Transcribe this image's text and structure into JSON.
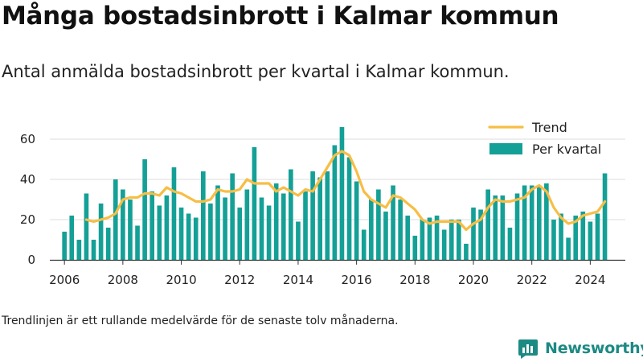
{
  "title": "Många bostadsinbrott i Kalmar kommun",
  "subtitle": "Antal anmälda bostadsinbrott per kvartal i Kalmar kommun.",
  "caption": "Trendlinjen är ett rullande medelvärde för de senaste tolv månaderna.",
  "brand": {
    "name": "Newsworthy"
  },
  "colors": {
    "bars": "#14a096",
    "trend": "#f7be45",
    "grid": "#dddddd",
    "axis": "#333333",
    "brand": "#1c8a83"
  },
  "chart_data": {
    "type": "bar",
    "title": "Många bostadsinbrott i Kalmar kommun",
    "subtitle": "Antal anmälda bostadsinbrott per kvartal i Kalmar kommun.",
    "xlabel": "",
    "ylabel": "",
    "ylim": [
      0,
      70
    ],
    "yticks": [
      0,
      20,
      40,
      60
    ],
    "xlim": [
      2005.5,
      2025.2
    ],
    "xticks": [
      2006,
      2008,
      2010,
      2012,
      2014,
      2016,
      2018,
      2020,
      2022,
      2024
    ],
    "grid": true,
    "legend_position": "top-right",
    "series": [
      {
        "name": "Per kvartal",
        "type": "bar",
        "x": [
          2006.0,
          2006.25,
          2006.5,
          2006.75,
          2007.0,
          2007.25,
          2007.5,
          2007.75,
          2008.0,
          2008.25,
          2008.5,
          2008.75,
          2009.0,
          2009.25,
          2009.5,
          2009.75,
          2010.0,
          2010.25,
          2010.5,
          2010.75,
          2011.0,
          2011.25,
          2011.5,
          2011.75,
          2012.0,
          2012.25,
          2012.5,
          2012.75,
          2013.0,
          2013.25,
          2013.5,
          2013.75,
          2014.0,
          2014.25,
          2014.5,
          2014.75,
          2015.0,
          2015.25,
          2015.5,
          2015.75,
          2016.0,
          2016.25,
          2016.5,
          2016.75,
          2017.0,
          2017.25,
          2017.5,
          2017.75,
          2018.0,
          2018.25,
          2018.5,
          2018.75,
          2019.0,
          2019.25,
          2019.5,
          2019.75,
          2020.0,
          2020.25,
          2020.5,
          2020.75,
          2021.0,
          2021.25,
          2021.5,
          2021.75,
          2022.0,
          2022.25,
          2022.5,
          2022.75,
          2023.0,
          2023.25,
          2023.5,
          2023.75,
          2024.0,
          2024.25,
          2024.5
        ],
        "values": [
          14,
          22,
          10,
          33,
          10,
          28,
          16,
          40,
          35,
          30,
          17,
          50,
          34,
          27,
          32,
          46,
          26,
          23,
          21,
          44,
          28,
          37,
          31,
          43,
          26,
          35,
          56,
          31,
          27,
          38,
          33,
          45,
          19,
          34,
          44,
          41,
          44,
          57,
          66,
          51,
          39,
          15,
          30,
          35,
          24,
          37,
          30,
          22,
          12,
          20,
          21,
          22,
          15,
          20,
          20,
          8,
          26,
          25,
          35,
          32,
          32,
          16,
          33,
          37,
          37,
          37,
          38,
          20,
          23,
          11,
          22,
          24,
          19,
          23,
          43
        ]
      },
      {
        "name": "Trend",
        "type": "line",
        "x": [
          2006.75,
          2007.0,
          2007.25,
          2007.5,
          2007.75,
          2008.0,
          2008.25,
          2008.5,
          2008.75,
          2009.0,
          2009.25,
          2009.5,
          2009.75,
          2010.0,
          2010.25,
          2010.5,
          2010.75,
          2011.0,
          2011.25,
          2011.5,
          2011.75,
          2012.0,
          2012.25,
          2012.5,
          2012.75,
          2013.0,
          2013.25,
          2013.5,
          2013.75,
          2014.0,
          2014.25,
          2014.5,
          2014.75,
          2015.0,
          2015.25,
          2015.5,
          2015.75,
          2016.0,
          2016.25,
          2016.5,
          2016.75,
          2017.0,
          2017.25,
          2017.5,
          2017.75,
          2018.0,
          2018.25,
          2018.5,
          2018.75,
          2019.0,
          2019.25,
          2019.5,
          2019.75,
          2020.0,
          2020.25,
          2020.5,
          2020.75,
          2021.0,
          2021.25,
          2021.5,
          2021.75,
          2022.0,
          2022.25,
          2022.5,
          2022.75,
          2023.0,
          2023.25,
          2023.5,
          2023.75,
          2024.0,
          2024.25,
          2024.5
        ],
        "values": [
          20,
          19,
          20,
          21,
          23,
          30,
          31,
          31,
          33,
          33,
          32,
          36,
          34,
          33,
          31,
          29,
          29,
          30,
          35,
          34,
          34,
          35,
          40,
          38,
          38,
          38,
          34,
          36,
          34,
          32,
          35,
          34,
          40,
          46,
          52,
          54,
          52,
          44,
          34,
          30,
          28,
          26,
          32,
          31,
          28,
          25,
          20,
          18,
          19,
          19,
          19,
          19,
          15,
          18,
          20,
          26,
          30,
          29,
          29,
          30,
          31,
          35,
          37,
          34,
          26,
          21,
          18,
          19,
          22,
          23,
          24,
          29
        ]
      }
    ]
  }
}
